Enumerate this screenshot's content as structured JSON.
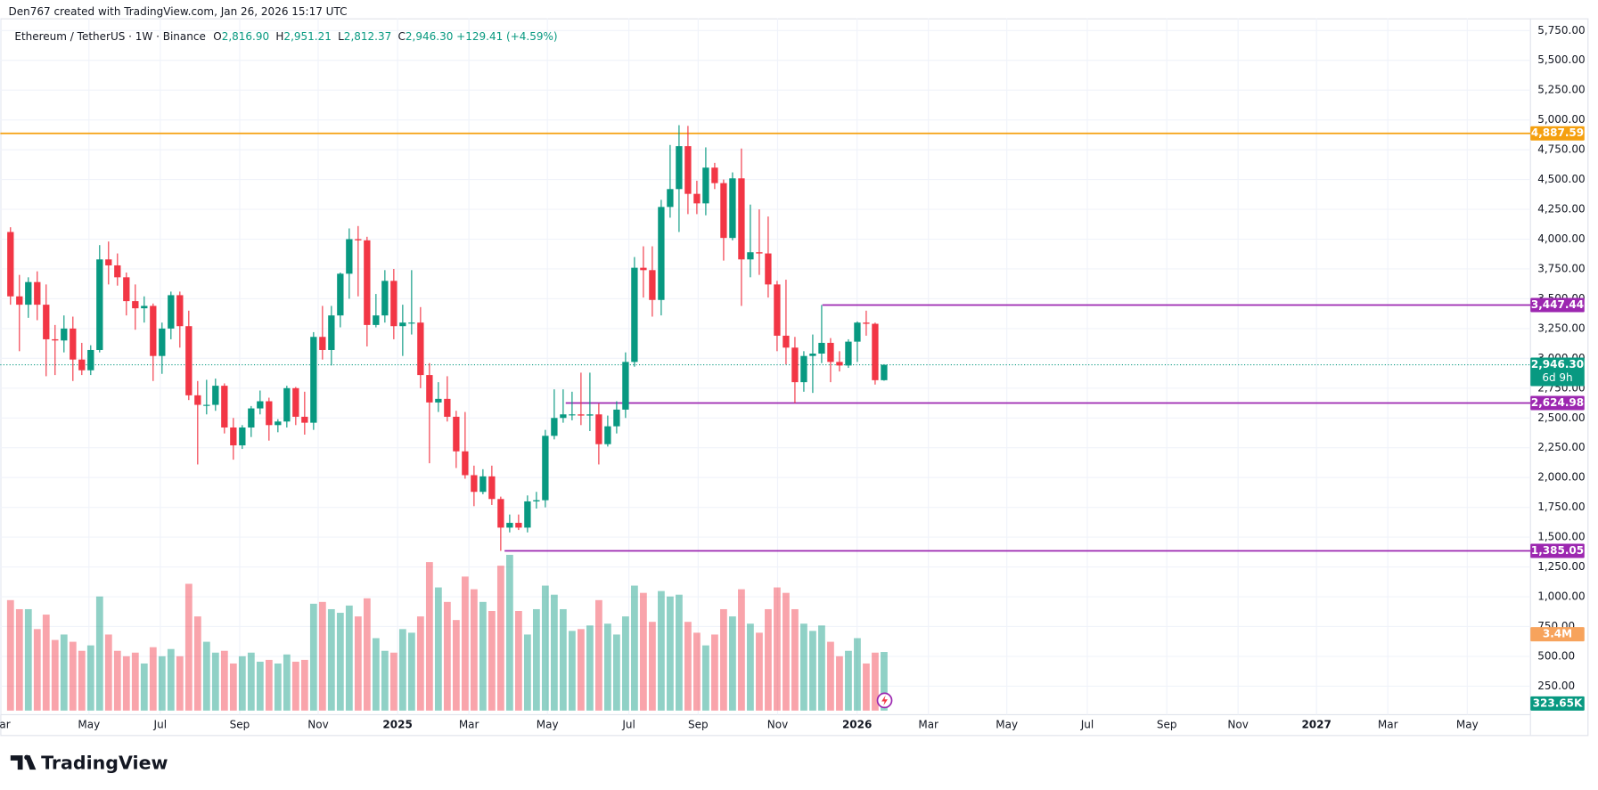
{
  "header": {
    "credit": "Den767 created with TradingView.com, Jan 26, 2026 15:17 UTC",
    "brand": "TradingView"
  },
  "chart_data": {
    "type": "candlestick",
    "legend": {
      "symbol": "Ethereum / TetherUS · 1W · Binance",
      "items": [
        {
          "key": "O",
          "value": 2816.9,
          "label": "2,816.90"
        },
        {
          "key": "H",
          "value": 2951.21,
          "label": "2,951.21"
        },
        {
          "key": "L",
          "value": 2812.37,
          "label": "2,812.37"
        },
        {
          "key": "C",
          "value": 2946.3,
          "label": "2,946.30"
        }
      ],
      "change": {
        "value": 129.41,
        "label": "+129.41"
      },
      "change_pct": {
        "value": 4.59,
        "label": "(+4.59%)"
      }
    },
    "up_color": "#089981",
    "down_color": "#f23645",
    "grid": true,
    "open": [
      4060,
      3520,
      3450,
      3640,
      3450,
      3160,
      3150,
      3250,
      2990,
      2900,
      3070,
      3830,
      3780,
      3680,
      3480,
      3420,
      3440,
      3020,
      3250,
      3530,
      3270,
      2690,
      2610,
      2610,
      2770,
      2420,
      2270,
      2420,
      2580,
      2640,
      2440,
      2470,
      2750,
      2510,
      2460,
      3180,
      3070,
      3360,
      3710,
      4000,
      3990,
      3280,
      3360,
      3650,
      3270,
      3300,
      3300,
      2860,
      2630,
      2660,
      2510,
      2220,
      2020,
      1880,
      2010,
      1820,
      1580,
      1620,
      1580,
      1800,
      1810,
      2350,
      2500,
      2530,
      2530,
      2520,
      2530,
      2280,
      2430,
      2570,
      2970,
      3760,
      3740,
      3490,
      4270,
      4420,
      4780,
      4380,
      4300,
      4600,
      4470,
      4010,
      4510,
      3830,
      3890,
      3880,
      3620,
      3190,
      3090,
      2800,
      3020,
      3040,
      3130,
      2970,
      2940,
      3140,
      3300,
      3290,
      2816.9
    ],
    "high": [
      4100,
      3700,
      3680,
      3730,
      3620,
      3280,
      3360,
      3350,
      3130,
      3110,
      3950,
      3980,
      3880,
      3720,
      3620,
      3520,
      3460,
      3300,
      3560,
      3560,
      3400,
      2810,
      2820,
      2830,
      2790,
      2500,
      2440,
      2600,
      2730,
      2670,
      2490,
      2770,
      2760,
      2720,
      3220,
      3440,
      3440,
      3720,
      4090,
      4110,
      4020,
      3540,
      3740,
      3750,
      3450,
      3740,
      3430,
      2960,
      2800,
      2850,
      2560,
      2550,
      2100,
      2070,
      2100,
      1840,
      1690,
      1690,
      1850,
      1880,
      2400,
      2740,
      2740,
      2720,
      2880,
      2880,
      2620,
      2520,
      2640,
      3050,
      3850,
      3940,
      3940,
      4330,
      4790,
      4956,
      4950,
      4490,
      4770,
      4640,
      4500,
      4560,
      4760,
      4290,
      4250,
      4190,
      3650,
      3660,
      3180,
      3060,
      3200,
      3447.44,
      3170,
      3060,
      3160,
      3310,
      3400,
      3300,
      2951.21
    ],
    "low": [
      3450,
      3060,
      3340,
      3320,
      2850,
      2860,
      3050,
      2810,
      2860,
      2860,
      3050,
      3620,
      3610,
      3360,
      3240,
      3300,
      2810,
      2870,
      3160,
      3090,
      2650,
      2110,
      2530,
      2560,
      2370,
      2150,
      2240,
      2340,
      2530,
      2310,
      2380,
      2420,
      2440,
      2360,
      2400,
      2990,
      2940,
      3260,
      3500,
      3520,
      3100,
      3260,
      3300,
      3160,
      3020,
      3200,
      2750,
      2120,
      2550,
      2470,
      2080,
      1990,
      1760,
      1860,
      1770,
      1385.05,
      1540,
      1560,
      1540,
      1740,
      1750,
      2320,
      2460,
      2480,
      2440,
      2390,
      2110,
      2260,
      2370,
      2500,
      2930,
      3510,
      3350,
      3360,
      4180,
      4060,
      4210,
      4210,
      4200,
      4420,
      3820,
      3990,
      3440,
      3680,
      3700,
      3510,
      3060,
      2950,
      2624.98,
      2720,
      2710,
      2960,
      2800,
      2890,
      2920,
      2970,
      3190,
      2780,
      2812.37
    ],
    "close": [
      3520,
      3450,
      3640,
      3450,
      3160,
      3150,
      3250,
      2990,
      2900,
      3070,
      3830,
      3780,
      3680,
      3480,
      3420,
      3440,
      3020,
      3250,
      3530,
      3270,
      2690,
      2610,
      2610,
      2770,
      2420,
      2270,
      2420,
      2580,
      2640,
      2440,
      2470,
      2750,
      2510,
      2460,
      3180,
      3070,
      3360,
      3710,
      4000,
      3990,
      3280,
      3360,
      3650,
      3270,
      3300,
      3300,
      2860,
      2630,
      2660,
      2510,
      2220,
      2020,
      1880,
      2010,
      1820,
      1580,
      1620,
      1580,
      1800,
      1810,
      2350,
      2500,
      2530,
      2530,
      2520,
      2530,
      2280,
      2430,
      2570,
      2970,
      3760,
      3740,
      3490,
      4270,
      4420,
      4780,
      4380,
      4300,
      4600,
      4470,
      4010,
      4510,
      3830,
      3890,
      3880,
      3620,
      3190,
      3090,
      2800,
      3020,
      3040,
      3130,
      2970,
      2940,
      3140,
      3300,
      3290,
      2816.9,
      2946.3
    ],
    "volume": [
      610000,
      560000,
      560000,
      450000,
      530000,
      390000,
      420000,
      380000,
      330000,
      360000,
      630000,
      420000,
      330000,
      300000,
      320000,
      260000,
      350000,
      300000,
      340000,
      300000,
      700000,
      520000,
      380000,
      320000,
      330000,
      260000,
      300000,
      320000,
      270000,
      280000,
      260000,
      310000,
      270000,
      280000,
      590000,
      600000,
      560000,
      540000,
      580000,
      520000,
      620000,
      400000,
      330000,
      320000,
      450000,
      430000,
      520000,
      820000,
      680000,
      600000,
      500000,
      740000,
      670000,
      600000,
      550000,
      800000,
      860000,
      550000,
      420000,
      560000,
      690000,
      640000,
      560000,
      440000,
      450000,
      470000,
      610000,
      480000,
      420000,
      520000,
      690000,
      650000,
      490000,
      660000,
      630000,
      640000,
      490000,
      430000,
      360000,
      420000,
      560000,
      520000,
      670000,
      480000,
      430000,
      560000,
      680000,
      650000,
      560000,
      480000,
      440000,
      470000,
      380000,
      300000,
      330000,
      400000,
      260000,
      320000,
      323650
    ],
    "volume_label": {
      "value": 323650,
      "label": "323.65K"
    },
    "volume_ma_label": {
      "value": 3400000,
      "label": "3.4M"
    },
    "last_price": {
      "value": 2946.3,
      "label": "2,946.30"
    },
    "countdown": "6d 9h",
    "hlines": [
      {
        "value": 4887.59,
        "label": "4,887.59",
        "color": "#f5a00f"
      },
      {
        "value": 3447.44,
        "label": "3,447.44",
        "color": "#9c27b0"
      },
      {
        "value": 2624.98,
        "label": "2,624.98",
        "color": "#9c27b0"
      },
      {
        "value": 1385.05,
        "label": "1,385.05",
        "color": "#9c27b0"
      }
    ],
    "x_labels": [
      "Mar",
      "May",
      "Jul",
      "Sep",
      "Nov",
      "2025",
      "Mar",
      "May",
      "Jul",
      "Sep",
      "Nov",
      "2026",
      "Mar",
      "May",
      "Jul",
      "Sep",
      "Nov",
      "2027",
      "Mar",
      "May"
    ],
    "ylim": [
      250,
      5750
    ],
    "yticks": [
      {
        "value": 250,
        "label": "250.00"
      },
      {
        "value": 500,
        "label": "500.00"
      },
      {
        "value": 750,
        "label": "750.00"
      },
      {
        "value": 1000,
        "label": "1,000.00"
      },
      {
        "value": 1250,
        "label": "1,250.00"
      },
      {
        "value": 1500,
        "label": "1,500.00"
      },
      {
        "value": 1750,
        "label": "1,750.00"
      },
      {
        "value": 2000,
        "label": "2,000.00"
      },
      {
        "value": 2250,
        "label": "2,250.00"
      },
      {
        "value": 2500,
        "label": "2,500.00"
      },
      {
        "value": 2750,
        "label": "2,750.00"
      },
      {
        "value": 3000,
        "label": "3,000.00"
      },
      {
        "value": 3250,
        "label": "3,250.00"
      },
      {
        "value": 3500,
        "label": "3,500.00"
      },
      {
        "value": 3750,
        "label": "3,750.00"
      },
      {
        "value": 4000,
        "label": "4,000.00"
      },
      {
        "value": 4250,
        "label": "4,250.00"
      },
      {
        "value": 4500,
        "label": "4,500.00"
      },
      {
        "value": 4750,
        "label": "4,750.00"
      },
      {
        "value": 5000,
        "label": "5,000.00"
      },
      {
        "value": 5250,
        "label": "5,250.00"
      },
      {
        "value": 5500,
        "label": "5,500.00"
      },
      {
        "value": 5750,
        "label": "5,750.00"
      }
    ]
  }
}
